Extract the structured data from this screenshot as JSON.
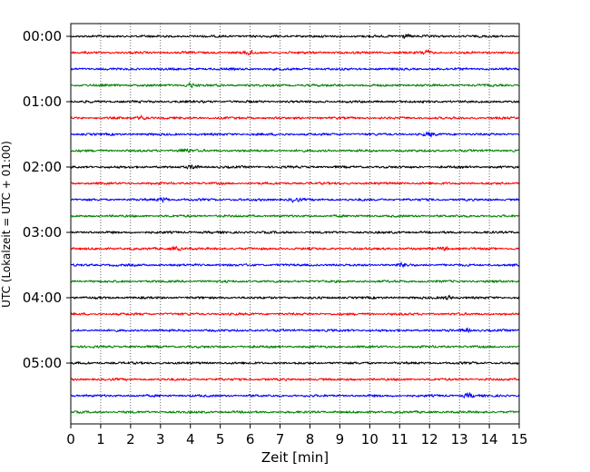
{
  "chart_data": {
    "type": "line",
    "description_kind": "seismogram helicorder",
    "xlabel": "Zeit  [min]",
    "ylabel": "UTC (Lokalzeit = UTC + 01:00)",
    "xlim": [
      0,
      15
    ],
    "x_ticks": [
      "0",
      "1",
      "2",
      "3",
      "4",
      "5",
      "6",
      "7",
      "8",
      "9",
      "10",
      "11",
      "12",
      "13",
      "14",
      "15"
    ],
    "y_tick_labels": [
      "00:00",
      "01:00",
      "02:00",
      "03:00",
      "04:00",
      "05:00"
    ],
    "trace_interval_minutes": 15,
    "trace_count": 24,
    "trace_colors": [
      "#000000",
      "#ff0000",
      "#0000ff",
      "#008000"
    ],
    "grid": "vertical dotted lines at each minute",
    "events": [
      {
        "trace": 0,
        "minute": 11.2
      },
      {
        "trace": 1,
        "minute": 6.0
      },
      {
        "trace": 1,
        "minute": 11.9
      },
      {
        "trace": 3,
        "minute": 4.0
      },
      {
        "trace": 5,
        "minute": 2.4
      },
      {
        "trace": 6,
        "minute": 12.0
      },
      {
        "trace": 7,
        "minute": 3.8
      },
      {
        "trace": 8,
        "minute": 4.1
      },
      {
        "trace": 10,
        "minute": 3.1
      },
      {
        "trace": 10,
        "minute": 7.5
      },
      {
        "trace": 13,
        "minute": 3.5
      },
      {
        "trace": 13,
        "minute": 12.5
      },
      {
        "trace": 14,
        "minute": 11.1
      },
      {
        "trace": 16,
        "minute": 12.6
      },
      {
        "trace": 18,
        "minute": 13.2
      },
      {
        "trace": 22,
        "minute": 13.3
      }
    ]
  }
}
